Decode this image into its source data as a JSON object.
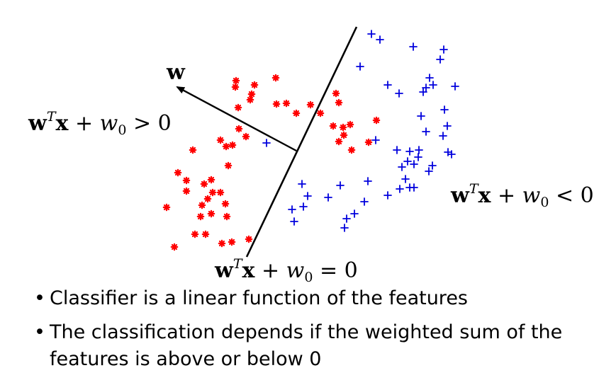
{
  "labels": {
    "w": "w",
    "pos": {
      "pre": "w",
      "sup": "T",
      "x": "x",
      "plus": " + ",
      "w0": "w",
      "sub0": "0",
      "rel": " > 0"
    },
    "neg": {
      "pre": "w",
      "sup": "T",
      "x": "x",
      "plus": " + ",
      "w0": "w",
      "sub0": "0",
      "rel": " < 0"
    },
    "boundary": {
      "pre": "w",
      "sup": "T",
      "x": "x",
      "plus": " + ",
      "w0": "w",
      "sub0": "0",
      "rel": " = 0"
    }
  },
  "bullets": [
    "Classifier is a linear function of the features",
    "The classification depends if the weighted sum of the features is above or below 0"
  ],
  "colors": {
    "positive": "#ff0000",
    "negative": "#0000dd",
    "ink": "#000000"
  },
  "chart_data": {
    "type": "scatter",
    "series": [
      {
        "marker": "asterisk",
        "color": "#ff0000",
        "points": [
          [
            389,
            110
          ],
          [
            333,
            114
          ],
          [
            359,
            120
          ],
          [
            332,
            123
          ],
          [
            355,
            133
          ],
          [
            474,
            132
          ],
          [
            353,
            141
          ],
          [
            390,
            147
          ],
          [
            404,
            146
          ],
          [
            478,
            145
          ],
          [
            438,
            148
          ],
          [
            452,
            160
          ],
          [
            418,
            160
          ],
          [
            336,
            152
          ],
          [
            531,
            170
          ],
          [
            470,
            178
          ],
          [
            484,
            180
          ],
          [
            494,
            176
          ],
          [
            337,
            182
          ],
          [
            485,
            191
          ],
          [
            347,
            193
          ],
          [
            311,
            198
          ],
          [
            319,
            207
          ],
          [
            328,
            205
          ],
          [
            478,
            200
          ],
          [
            520,
            201
          ],
          [
            496,
            212
          ],
          [
            272,
            212
          ],
          [
            322,
            234
          ],
          [
            251,
            244
          ],
          [
            263,
            255
          ],
          [
            298,
            254
          ],
          [
            288,
            260
          ],
          [
            263,
            270
          ],
          [
            300,
            272
          ],
          [
            311,
            272
          ],
          [
            293,
            281
          ],
          [
            235,
            293
          ],
          [
            285,
            290
          ],
          [
            318,
            288
          ],
          [
            298,
            302
          ],
          [
            283,
            306
          ],
          [
            320,
            306
          ],
          [
            275,
            331
          ],
          [
            290,
            331
          ],
          [
            313,
            344
          ],
          [
            327,
            342
          ],
          [
            351,
            338
          ],
          [
            246,
            349
          ]
        ]
      },
      {
        "marker": "plus",
        "color": "#0000dd",
        "points": [
          [
            524,
            48
          ],
          [
            536,
            56
          ],
          [
            583,
            66
          ],
          [
            626,
            70
          ],
          [
            621,
            84
          ],
          [
            508,
            94
          ],
          [
            606,
            110
          ],
          [
            611,
            120
          ],
          [
            547,
            120
          ],
          [
            563,
            132
          ],
          [
            597,
            130
          ],
          [
            601,
            124
          ],
          [
            642,
            122
          ],
          [
            627,
            155
          ],
          [
            594,
            164
          ],
          [
            631,
            178
          ],
          [
            601,
            186
          ],
          [
            530,
            198
          ],
          [
            625,
            192
          ],
          [
            376,
            202
          ],
          [
            560,
            212
          ],
          [
            578,
            214
          ],
          [
            591,
            212
          ],
          [
            632,
            215
          ],
          [
            637,
            218
          ],
          [
            575,
            228
          ],
          [
            590,
            222
          ],
          [
            567,
            236
          ],
          [
            584,
            232
          ],
          [
            610,
            234
          ],
          [
            605,
            242
          ],
          [
            426,
            260
          ],
          [
            480,
            262
          ],
          [
            519,
            256
          ],
          [
            572,
            253
          ],
          [
            578,
            265
          ],
          [
            564,
            267
          ],
          [
            584,
            265
          ],
          [
            434,
            277
          ],
          [
            463,
            279
          ],
          [
            547,
            276
          ],
          [
            514,
            285
          ],
          [
            428,
            292
          ],
          [
            412,
            296
          ],
          [
            500,
            302
          ],
          [
            489,
            309
          ],
          [
            415,
            313
          ],
          [
            486,
            322
          ]
        ]
      }
    ]
  }
}
